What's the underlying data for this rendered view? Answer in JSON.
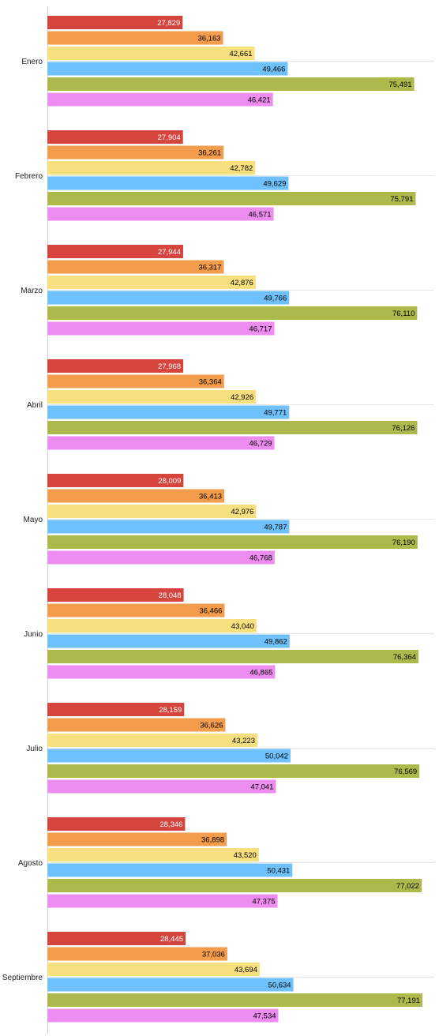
{
  "chart_data": {
    "type": "bar",
    "orientation": "horizontal",
    "categories": [
      "Enero",
      "Febrero",
      "Marzo",
      "Abril",
      "Mayo",
      "Junio",
      "Julio",
      "Agosto",
      "Septiembre"
    ],
    "series": [
      {
        "color": "#d6453d",
        "label_color": "#ffffff",
        "values": [
          27829,
          27904,
          27944,
          27968,
          28009,
          28048,
          28159,
          28346,
          28445
        ]
      },
      {
        "color": "#f39c4b",
        "label_color": "#000000",
        "values": [
          36163,
          36261,
          36317,
          36364,
          36413,
          36466,
          36626,
          36898,
          37036
        ]
      },
      {
        "color": "#f7df7e",
        "label_color": "#000000",
        "values": [
          42661,
          42782,
          42876,
          42926,
          42976,
          43040,
          43223,
          43520,
          43694
        ]
      },
      {
        "color": "#6ec1fb",
        "label_color": "#000000",
        "values": [
          49466,
          49629,
          49766,
          49771,
          49787,
          49862,
          50042,
          50431,
          50634
        ]
      },
      {
        "color": "#adb94a",
        "label_color": "#000000",
        "values": [
          75491,
          75791,
          76110,
          76126,
          76190,
          76364,
          76569,
          77022,
          77191
        ]
      },
      {
        "color": "#ec8def",
        "label_color": "#000000",
        "values": [
          46421,
          46571,
          46717,
          46729,
          46768,
          46865,
          47041,
          47375,
          47534
        ]
      }
    ],
    "value_labels": [
      [
        "27,829",
        "36,163",
        "42,661",
        "49,466",
        "75,491",
        "46,421"
      ],
      [
        "27,904",
        "36,261",
        "42,782",
        "49,629",
        "75,791",
        "46,571"
      ],
      [
        "27,944",
        "36,317",
        "42,876",
        "49,766",
        "76,110",
        "46,717"
      ],
      [
        "27,968",
        "36,364",
        "42,926",
        "49,771",
        "76,126",
        "46,729"
      ],
      [
        "28,009",
        "36,413",
        "42,976",
        "49,787",
        "76,190",
        "46,768"
      ],
      [
        "28,048",
        "36,466",
        "43,040",
        "49,862",
        "76,364",
        "46,865"
      ],
      [
        "28,159",
        "36,626",
        "43,223",
        "50,042",
        "76,569",
        "47,041"
      ],
      [
        "28,346",
        "36,898",
        "43,520",
        "50,431",
        "77,022",
        "47,375"
      ],
      [
        "28,445",
        "37,036",
        "43,694",
        "50,634",
        "77,191",
        "47,534"
      ]
    ],
    "xlim": [
      0,
      78000
    ],
    "grid": true,
    "legend": "none",
    "title": "",
    "xlabel": "",
    "ylabel": ""
  }
}
